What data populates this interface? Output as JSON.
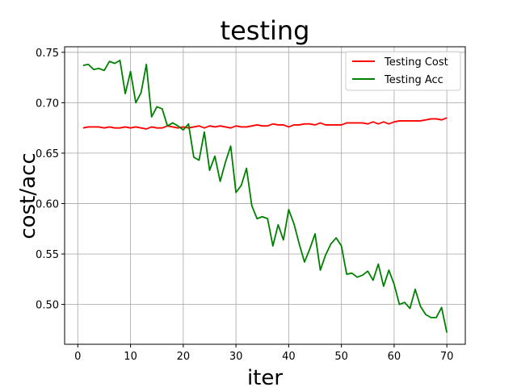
{
  "chart_data": {
    "type": "line",
    "title": "testing",
    "xlabel": "iter",
    "ylabel": "cost/acc",
    "xlim": [
      -2.5,
      73.5
    ],
    "ylim": [
      0.4605,
      0.7555
    ],
    "xticks": [
      0,
      10,
      20,
      30,
      40,
      50,
      60,
      70
    ],
    "yticks": [
      0.5,
      0.55,
      0.6,
      0.65,
      0.7,
      0.75
    ],
    "ytick_labels": [
      "0.50",
      "0.55",
      "0.60",
      "0.65",
      "0.70",
      "0.75"
    ],
    "grid": true,
    "legend_position": "top-right",
    "x": [
      1,
      2,
      3,
      4,
      5,
      6,
      7,
      8,
      9,
      10,
      11,
      12,
      13,
      14,
      15,
      16,
      17,
      18,
      19,
      20,
      21,
      22,
      23,
      24,
      25,
      26,
      27,
      28,
      29,
      30,
      31,
      32,
      33,
      34,
      35,
      36,
      37,
      38,
      39,
      40,
      41,
      42,
      43,
      44,
      45,
      46,
      47,
      48,
      49,
      50,
      51,
      52,
      53,
      54,
      55,
      56,
      57,
      58,
      59,
      60,
      61,
      62,
      63,
      64,
      65,
      66,
      67,
      68,
      69,
      70
    ],
    "series": [
      {
        "name": "Testing Cost",
        "color": "#ff0000",
        "values": [
          0.675,
          0.676,
          0.676,
          0.676,
          0.675,
          0.676,
          0.675,
          0.675,
          0.676,
          0.675,
          0.676,
          0.675,
          0.674,
          0.676,
          0.675,
          0.675,
          0.677,
          0.676,
          0.675,
          0.676,
          0.675,
          0.676,
          0.677,
          0.675,
          0.677,
          0.676,
          0.677,
          0.676,
          0.675,
          0.677,
          0.676,
          0.676,
          0.677,
          0.678,
          0.677,
          0.677,
          0.679,
          0.678,
          0.678,
          0.676,
          0.678,
          0.678,
          0.679,
          0.679,
          0.678,
          0.68,
          0.678,
          0.678,
          0.678,
          0.678,
          0.68,
          0.68,
          0.68,
          0.68,
          0.679,
          0.681,
          0.679,
          0.681,
          0.679,
          0.681,
          0.682,
          0.682,
          0.682,
          0.682,
          0.682,
          0.683,
          0.684,
          0.684,
          0.683,
          0.685
        ]
      },
      {
        "name": "Testing Acc",
        "color": "#008000",
        "values": [
          0.737,
          0.738,
          0.733,
          0.734,
          0.732,
          0.741,
          0.739,
          0.742,
          0.709,
          0.731,
          0.7,
          0.71,
          0.738,
          0.686,
          0.696,
          0.694,
          0.677,
          0.68,
          0.677,
          0.673,
          0.679,
          0.646,
          0.643,
          0.671,
          0.633,
          0.647,
          0.622,
          0.641,
          0.657,
          0.611,
          0.618,
          0.635,
          0.598,
          0.585,
          0.587,
          0.585,
          0.558,
          0.579,
          0.564,
          0.594,
          0.58,
          0.56,
          0.542,
          0.555,
          0.57,
          0.534,
          0.549,
          0.56,
          0.566,
          0.558,
          0.53,
          0.531,
          0.527,
          0.529,
          0.533,
          0.524,
          0.54,
          0.518,
          0.534,
          0.52,
          0.5,
          0.502,
          0.496,
          0.515,
          0.498,
          0.49,
          0.487,
          0.487,
          0.497,
          0.472
        ]
      }
    ]
  }
}
